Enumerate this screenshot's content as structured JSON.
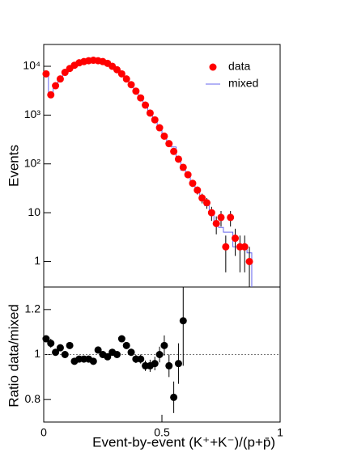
{
  "chart_data": [
    {
      "type": "scatter",
      "ylabel": "Events",
      "log_y": true,
      "x": [
        0.01,
        0.03,
        0.05,
        0.07,
        0.09,
        0.11,
        0.13,
        0.15,
        0.17,
        0.19,
        0.21,
        0.23,
        0.25,
        0.27,
        0.29,
        0.31,
        0.33,
        0.35,
        0.37,
        0.39,
        0.41,
        0.43,
        0.45,
        0.47,
        0.49,
        0.51,
        0.53,
        0.55,
        0.57,
        0.59,
        0.61,
        0.63,
        0.65,
        0.67,
        0.69,
        0.71,
        0.73,
        0.75,
        0.77,
        0.79,
        0.81,
        0.83,
        0.85,
        0.87
      ],
      "series": [
        {
          "name": "data",
          "color": "#ff0000",
          "values": [
            7000,
            2600,
            4000,
            5500,
            7500,
            9000,
            10500,
            11800,
            12500,
            13000,
            13300,
            13000,
            12500,
            11500,
            10000,
            8500,
            7000,
            5500,
            4200,
            3100,
            2250,
            1600,
            1100,
            800,
            550,
            370,
            260,
            180,
            125,
            85,
            60,
            40,
            29,
            20,
            16,
            10,
            6,
            8,
            2,
            8,
            3,
            2,
            2,
            1
          ],
          "errors": [
            84,
            51,
            63,
            74,
            87,
            95,
            102,
            109,
            112,
            114,
            115,
            114,
            112,
            107,
            100,
            92,
            84,
            74,
            65,
            56,
            47,
            40,
            33,
            28,
            23,
            19,
            16,
            13,
            11,
            9.2,
            7.7,
            6.3,
            5.4,
            4.5,
            4,
            3.2,
            2.4,
            2.8,
            1.4,
            2.8,
            1.7,
            1.4,
            1.4,
            1
          ]
        },
        {
          "name": "mixed",
          "color": "#6666ee",
          "values": [
            6540,
            2480,
            3960,
            5340,
            7500,
            8650,
            10800,
            12000,
            12750,
            13250,
            13700,
            12750,
            12500,
            11600,
            9900,
            8500,
            6540,
            5290,
            4160,
            3160,
            2300,
            1680,
            1160,
            830,
            550,
            356,
            274,
            222,
            130,
            74,
            55,
            40,
            27,
            19,
            14,
            10,
            6,
            5,
            4,
            4,
            2,
            2,
            2,
            1.5
          ]
        }
      ],
      "xlim": [
        0,
        1
      ],
      "ylim": [
        0.3,
        28000
      ],
      "yticks": [
        {
          "value": 1,
          "label": "1"
        },
        {
          "value": 10,
          "label": "10"
        },
        {
          "value": 100,
          "label": "10²"
        },
        {
          "value": 1000,
          "label": "10³"
        },
        {
          "value": 10000,
          "label": "10⁴"
        }
      ],
      "legend": "upper right"
    },
    {
      "type": "scatter",
      "ylabel": "Ratio data/mixed",
      "xlabel": "Event-by-event (K⁺+K⁻)/(p+p̄)",
      "x": [
        0.01,
        0.03,
        0.05,
        0.07,
        0.09,
        0.11,
        0.13,
        0.15,
        0.17,
        0.19,
        0.21,
        0.23,
        0.25,
        0.27,
        0.29,
        0.31,
        0.33,
        0.35,
        0.37,
        0.39,
        0.41,
        0.43,
        0.45,
        0.47,
        0.49,
        0.51,
        0.53,
        0.55,
        0.57,
        0.59
      ],
      "values": [
        1.07,
        1.05,
        1.01,
        1.03,
        1.0,
        1.04,
        0.97,
        0.98,
        0.98,
        0.98,
        0.97,
        1.02,
        1.0,
        0.99,
        1.01,
        1.0,
        1.07,
        1.04,
        1.01,
        0.98,
        0.98,
        0.95,
        0.95,
        0.96,
        1.0,
        1.04,
        0.95,
        0.81,
        0.96,
        1.15
      ],
      "errors": [
        0.015,
        0.02,
        0.015,
        0.015,
        0.013,
        0.012,
        0.012,
        0.011,
        0.011,
        0.011,
        0.011,
        0.011,
        0.011,
        0.012,
        0.012,
        0.013,
        0.014,
        0.015,
        0.016,
        0.018,
        0.02,
        0.023,
        0.027,
        0.03,
        0.035,
        0.045,
        0.05,
        0.07,
        0.09,
        0.2
      ],
      "color": "#000000",
      "reference_line": 1,
      "xlim": [
        0,
        1
      ],
      "ylim": [
        0.7,
        1.3
      ],
      "xticks": [
        0,
        0.5,
        1
      ],
      "yticks": [
        0.8,
        1,
        1.2
      ]
    }
  ]
}
